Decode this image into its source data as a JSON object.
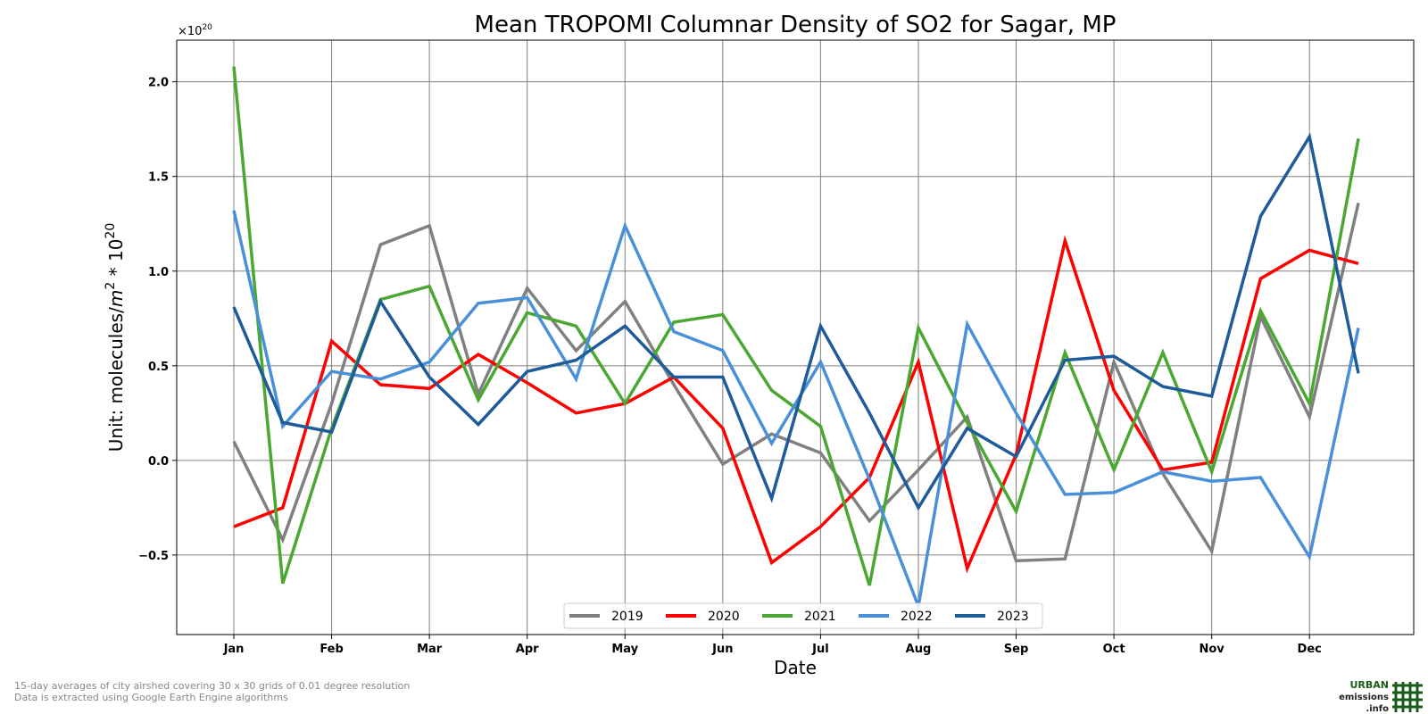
{
  "footnotes": {
    "line1": "15-day averages of city airshed covering 30 x 30 grids of 0.01 degree resolution",
    "line2": "Data is extracted using Google Earth Engine algorithms"
  },
  "logo": {
    "line1": "URBAN",
    "line2": "emissions",
    "line3": ".info",
    "color": "#1a5c1a"
  },
  "chart_data": {
    "type": "line",
    "title": "Mean TROPOMI Columnar Density of SO2 for Sagar, MP",
    "xlabel": "Date",
    "ylabel_main": "Unit: molecules/",
    "ylabel_m": "m",
    "ylabel_sup": "2",
    "ylabel_mid": " * 10",
    "ylabel_exp": "20",
    "offset_base": "×10",
    "offset_exp": "20",
    "ylim": [
      -0.92,
      2.22
    ],
    "x_points": 24,
    "month_ticks": [
      {
        "label": "Jan",
        "index": 0
      },
      {
        "label": "Feb",
        "index": 2
      },
      {
        "label": "Mar",
        "index": 4
      },
      {
        "label": "Apr",
        "index": 6
      },
      {
        "label": "May",
        "index": 8
      },
      {
        "label": "Jun",
        "index": 10
      },
      {
        "label": "Jul",
        "index": 12
      },
      {
        "label": "Aug",
        "index": 14
      },
      {
        "label": "Sep",
        "index": 16
      },
      {
        "label": "Oct",
        "index": 18
      },
      {
        "label": "Nov",
        "index": 20
      },
      {
        "label": "Dec",
        "index": 22
      }
    ],
    "y_ticks": [
      {
        "value": -0.5,
        "label": "−0.5"
      },
      {
        "value": 0.0,
        "label": "0.0"
      },
      {
        "value": 0.5,
        "label": "0.5"
      },
      {
        "value": 1.0,
        "label": "1.0"
      },
      {
        "value": 1.5,
        "label": "1.5"
      },
      {
        "value": 2.0,
        "label": "2.0"
      }
    ],
    "grid": true,
    "legend_position": "bottom-center",
    "series": [
      {
        "name": "2019",
        "color": "#808080",
        "values": [
          0.1,
          -0.42,
          0.3,
          1.14,
          1.24,
          0.35,
          0.91,
          0.58,
          0.84,
          0.4,
          -0.02,
          0.14,
          0.04,
          -0.32,
          -0.05,
          0.23,
          -0.53,
          -0.52,
          0.52,
          -0.07,
          -0.48,
          0.76,
          0.23,
          1.36
        ]
      },
      {
        "name": "2020",
        "color": "#ff0000",
        "values": [
          -0.35,
          -0.25,
          0.63,
          0.4,
          0.38,
          0.56,
          0.41,
          0.25,
          0.3,
          0.44,
          0.17,
          -0.54,
          -0.35,
          -0.09,
          0.52,
          -0.57,
          0.03,
          1.16,
          0.37,
          -0.05,
          -0.01,
          0.96,
          1.11,
          1.04
        ]
      },
      {
        "name": "2021",
        "color": "#4aa832",
        "values": [
          2.08,
          -0.65,
          0.17,
          0.85,
          0.92,
          0.32,
          0.78,
          0.71,
          0.3,
          0.73,
          0.77,
          0.37,
          0.18,
          -0.66,
          0.7,
          0.2,
          -0.27,
          0.57,
          -0.05,
          0.57,
          -0.06,
          0.79,
          0.3,
          1.7
        ]
      },
      {
        "name": "2022",
        "color": "#4a90d9",
        "values": [
          1.32,
          0.18,
          0.47,
          0.43,
          0.52,
          0.83,
          0.86,
          0.43,
          1.24,
          0.68,
          0.58,
          0.09,
          0.52,
          -0.1,
          -0.77,
          0.72,
          0.25,
          -0.18,
          -0.17,
          -0.06,
          -0.11,
          -0.09,
          -0.51,
          0.7
        ]
      },
      {
        "name": "2023",
        "color": "#1f5b99",
        "values": [
          0.81,
          0.2,
          0.15,
          0.84,
          0.44,
          0.19,
          0.47,
          0.53,
          0.71,
          0.44,
          0.44,
          -0.2,
          0.71,
          0.25,
          -0.25,
          0.17,
          0.02,
          0.53,
          0.55,
          0.39,
          0.34,
          1.29,
          1.71,
          0.46
        ]
      }
    ]
  }
}
